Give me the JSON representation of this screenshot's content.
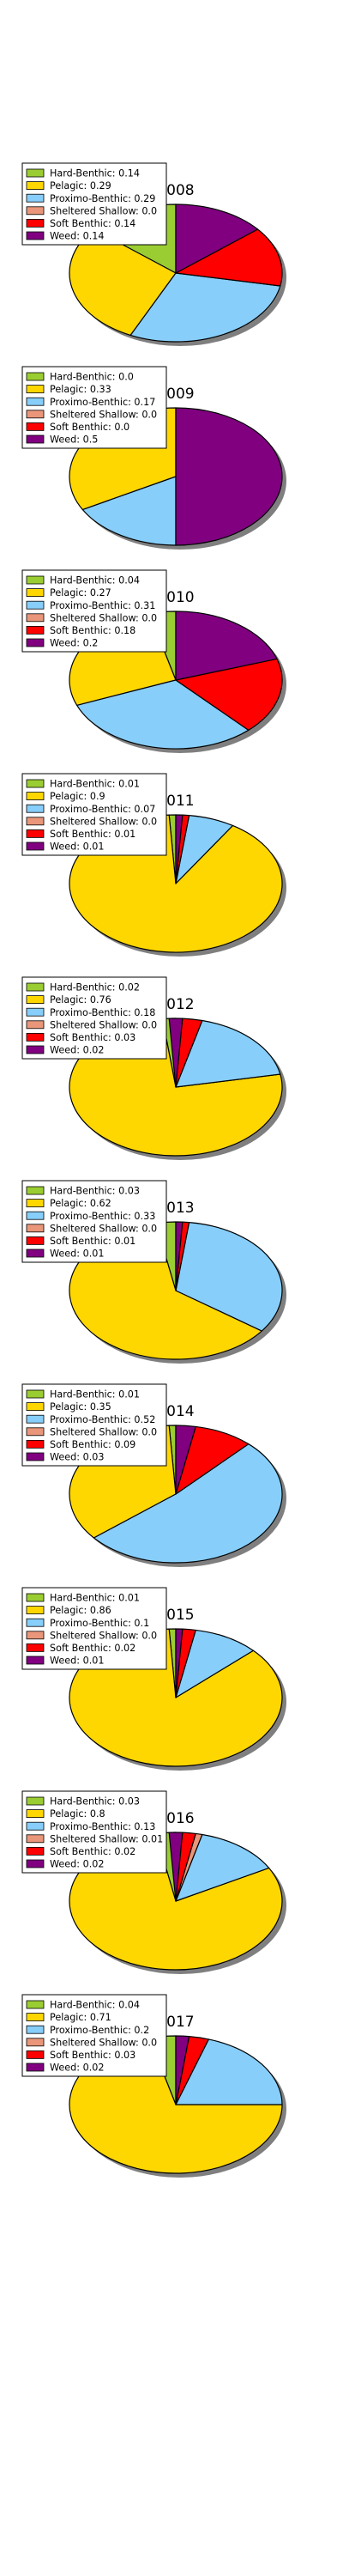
{
  "chart_data": [
    {
      "type": "pie",
      "title": "2008",
      "categories": [
        "Hard-Benthic",
        "Pelagic",
        "Proximo-Benthic",
        "Sheltered Shallow",
        "Soft Benthic",
        "Weed"
      ],
      "values": [
        0.14,
        0.29,
        0.29,
        0.0,
        0.14,
        0.14
      ],
      "legend": [
        "Hard-Benthic: 0.14",
        "Pelagic: 0.29",
        "Proximo-Benthic: 0.29",
        "Sheltered Shallow: 0.0",
        "Soft Benthic: 0.14",
        "Weed: 0.14"
      ]
    },
    {
      "type": "pie",
      "title": "2009",
      "categories": [
        "Hard-Benthic",
        "Pelagic",
        "Proximo-Benthic",
        "Sheltered Shallow",
        "Soft Benthic",
        "Weed"
      ],
      "values": [
        0.0,
        0.33,
        0.17,
        0.0,
        0.0,
        0.5
      ],
      "legend": [
        "Hard-Benthic: 0.0",
        "Pelagic: 0.33",
        "Proximo-Benthic: 0.17",
        "Sheltered Shallow: 0.0",
        "Soft Benthic: 0.0",
        "Weed: 0.5"
      ]
    },
    {
      "type": "pie",
      "title": "2010",
      "categories": [
        "Hard-Benthic",
        "Pelagic",
        "Proximo-Benthic",
        "Sheltered Shallow",
        "Soft Benthic",
        "Weed"
      ],
      "values": [
        0.04,
        0.27,
        0.31,
        0.0,
        0.18,
        0.2
      ],
      "legend": [
        "Hard-Benthic: 0.04",
        "Pelagic: 0.27",
        "Proximo-Benthic: 0.31",
        "Sheltered Shallow: 0.0",
        "Soft Benthic: 0.18",
        "Weed: 0.2"
      ]
    },
    {
      "type": "pie",
      "title": "2011",
      "categories": [
        "Hard-Benthic",
        "Pelagic",
        "Proximo-Benthic",
        "Sheltered Shallow",
        "Soft Benthic",
        "Weed"
      ],
      "values": [
        0.01,
        0.9,
        0.07,
        0.0,
        0.01,
        0.01
      ],
      "legend": [
        "Hard-Benthic: 0.01",
        "Pelagic: 0.9",
        "Proximo-Benthic: 0.07",
        "Sheltered Shallow: 0.0",
        "Soft Benthic: 0.01",
        "Weed: 0.01"
      ]
    },
    {
      "type": "pie",
      "title": "2012",
      "categories": [
        "Hard-Benthic",
        "Pelagic",
        "Proximo-Benthic",
        "Sheltered Shallow",
        "Soft Benthic",
        "Weed"
      ],
      "values": [
        0.02,
        0.76,
        0.18,
        0.0,
        0.03,
        0.02
      ],
      "legend": [
        "Hard-Benthic: 0.02",
        "Pelagic: 0.76",
        "Proximo-Benthic: 0.18",
        "Sheltered Shallow: 0.0",
        "Soft Benthic: 0.03",
        "Weed: 0.02"
      ]
    },
    {
      "type": "pie",
      "title": "2013",
      "categories": [
        "Hard-Benthic",
        "Pelagic",
        "Proximo-Benthic",
        "Sheltered Shallow",
        "Soft Benthic",
        "Weed"
      ],
      "values": [
        0.03,
        0.62,
        0.33,
        0.0,
        0.01,
        0.01
      ],
      "legend": [
        "Hard-Benthic: 0.03",
        "Pelagic: 0.62",
        "Proximo-Benthic: 0.33",
        "Sheltered Shallow: 0.0",
        "Soft Benthic: 0.01",
        "Weed: 0.01"
      ]
    },
    {
      "type": "pie",
      "title": "2014",
      "categories": [
        "Hard-Benthic",
        "Pelagic",
        "Proximo-Benthic",
        "Sheltered Shallow",
        "Soft Benthic",
        "Weed"
      ],
      "values": [
        0.01,
        0.35,
        0.52,
        0.0,
        0.09,
        0.03
      ],
      "legend": [
        "Hard-Benthic: 0.01",
        "Pelagic: 0.35",
        "Proximo-Benthic: 0.52",
        "Sheltered Shallow: 0.0",
        "Soft Benthic: 0.09",
        "Weed: 0.03"
      ]
    },
    {
      "type": "pie",
      "title": "2015",
      "categories": [
        "Hard-Benthic",
        "Pelagic",
        "Proximo-Benthic",
        "Sheltered Shallow",
        "Soft Benthic",
        "Weed"
      ],
      "values": [
        0.01,
        0.86,
        0.1,
        0.0,
        0.02,
        0.01
      ],
      "legend": [
        "Hard-Benthic: 0.01",
        "Pelagic: 0.86",
        "Proximo-Benthic: 0.1",
        "Sheltered Shallow: 0.0",
        "Soft Benthic: 0.02",
        "Weed: 0.01"
      ]
    },
    {
      "type": "pie",
      "title": "2016",
      "categories": [
        "Hard-Benthic",
        "Pelagic",
        "Proximo-Benthic",
        "Sheltered Shallow",
        "Soft Benthic",
        "Weed"
      ],
      "values": [
        0.03,
        0.8,
        0.13,
        0.01,
        0.02,
        0.02
      ],
      "legend": [
        "Hard-Benthic: 0.03",
        "Pelagic: 0.8",
        "Proximo-Benthic: 0.13",
        "Sheltered Shallow: 0.01",
        "Soft Benthic: 0.02",
        "Weed: 0.02"
      ]
    },
    {
      "type": "pie",
      "title": "2017",
      "categories": [
        "Hard-Benthic",
        "Pelagic",
        "Proximo-Benthic",
        "Sheltered Shallow",
        "Soft Benthic",
        "Weed"
      ],
      "values": [
        0.04,
        0.71,
        0.2,
        0.0,
        0.03,
        0.02
      ],
      "legend": [
        "Hard-Benthic: 0.04",
        "Pelagic: 0.71",
        "Proximo-Benthic: 0.2",
        "Sheltered Shallow: 0.0",
        "Soft Benthic: 0.03",
        "Weed: 0.02"
      ]
    }
  ],
  "colors": {
    "Hard-Benthic": "#9acd32",
    "Pelagic": "#ffd700",
    "Proximo-Benthic": "#87cefa",
    "Sheltered Shallow": "#e9967a",
    "Soft Benthic": "#ff0000",
    "Weed": "#800080"
  }
}
